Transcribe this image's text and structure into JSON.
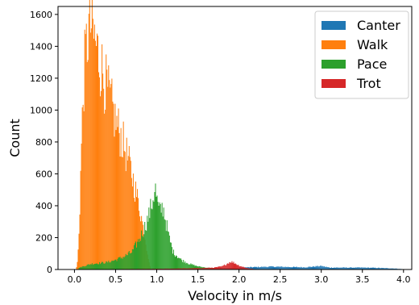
{
  "chart_data": {
    "type": "histogram",
    "xlabel": "Velocity in m/s",
    "ylabel": "Count",
    "xlim": [
      -0.2,
      4.1
    ],
    "ylim": [
      0,
      1650
    ],
    "xticks": [
      "0.0",
      "0.5",
      "1.0",
      "1.5",
      "2.0",
      "2.5",
      "3.0",
      "3.5",
      "4.0"
    ],
    "yticks": [
      "0",
      "200",
      "400",
      "600",
      "800",
      "1000",
      "1200",
      "1400",
      "1600"
    ],
    "legend_position": "top-right",
    "bin_width": 0.01,
    "series": [
      {
        "name": "Canter",
        "color": "#1f77b4",
        "range": [
          1.2,
          4.0
        ],
        "envelope": [
          [
            1.2,
            3
          ],
          [
            1.5,
            6
          ],
          [
            1.9,
            10
          ],
          [
            2.1,
            14
          ],
          [
            2.4,
            18
          ],
          [
            2.6,
            16
          ],
          [
            2.8,
            14
          ],
          [
            3.0,
            22
          ],
          [
            3.1,
            12
          ],
          [
            3.3,
            12
          ],
          [
            3.5,
            12
          ],
          [
            3.7,
            10
          ],
          [
            3.9,
            6
          ],
          [
            4.0,
            2
          ]
        ]
      },
      {
        "name": "Walk",
        "color": "#ff7f0e",
        "range": [
          0.02,
          0.92
        ],
        "envelope": [
          [
            0.02,
            0
          ],
          [
            0.04,
            60
          ],
          [
            0.06,
            300
          ],
          [
            0.08,
            700
          ],
          [
            0.1,
            1000
          ],
          [
            0.12,
            1250
          ],
          [
            0.15,
            1420
          ],
          [
            0.18,
            1530
          ],
          [
            0.2,
            1540
          ],
          [
            0.22,
            1490
          ],
          [
            0.25,
            1430
          ],
          [
            0.3,
            1330
          ],
          [
            0.35,
            1220
          ],
          [
            0.4,
            1120
          ],
          [
            0.45,
            1030
          ],
          [
            0.5,
            930
          ],
          [
            0.55,
            860
          ],
          [
            0.6,
            780
          ],
          [
            0.65,
            690
          ],
          [
            0.7,
            590
          ],
          [
            0.75,
            480
          ],
          [
            0.8,
            370
          ],
          [
            0.85,
            220
          ],
          [
            0.88,
            120
          ],
          [
            0.92,
            5
          ]
        ]
      },
      {
        "name": "Pace",
        "color": "#2ca02c",
        "range": [
          0.05,
          1.8
        ],
        "envelope": [
          [
            0.05,
            10
          ],
          [
            0.2,
            35
          ],
          [
            0.4,
            45
          ],
          [
            0.5,
            60
          ],
          [
            0.6,
            80
          ],
          [
            0.7,
            110
          ],
          [
            0.8,
            200
          ],
          [
            0.85,
            260
          ],
          [
            0.9,
            330
          ],
          [
            0.95,
            430
          ],
          [
            0.98,
            520
          ],
          [
            1.0,
            440
          ],
          [
            1.03,
            360
          ],
          [
            1.05,
            380
          ],
          [
            1.08,
            390
          ],
          [
            1.1,
            330
          ],
          [
            1.15,
            200
          ],
          [
            1.2,
            110
          ],
          [
            1.3,
            60
          ],
          [
            1.4,
            35
          ],
          [
            1.5,
            20
          ],
          [
            1.6,
            12
          ],
          [
            1.8,
            4
          ]
        ]
      },
      {
        "name": "Trot",
        "color": "#d62728",
        "range": [
          0.3,
          2.2
        ],
        "envelope": [
          [
            0.3,
            2
          ],
          [
            1.0,
            4
          ],
          [
            1.5,
            8
          ],
          [
            1.7,
            12
          ],
          [
            1.8,
            20
          ],
          [
            1.85,
            35
          ],
          [
            1.9,
            50
          ],
          [
            1.95,
            40
          ],
          [
            2.0,
            25
          ],
          [
            2.1,
            8
          ],
          [
            2.2,
            2
          ]
        ]
      }
    ]
  }
}
